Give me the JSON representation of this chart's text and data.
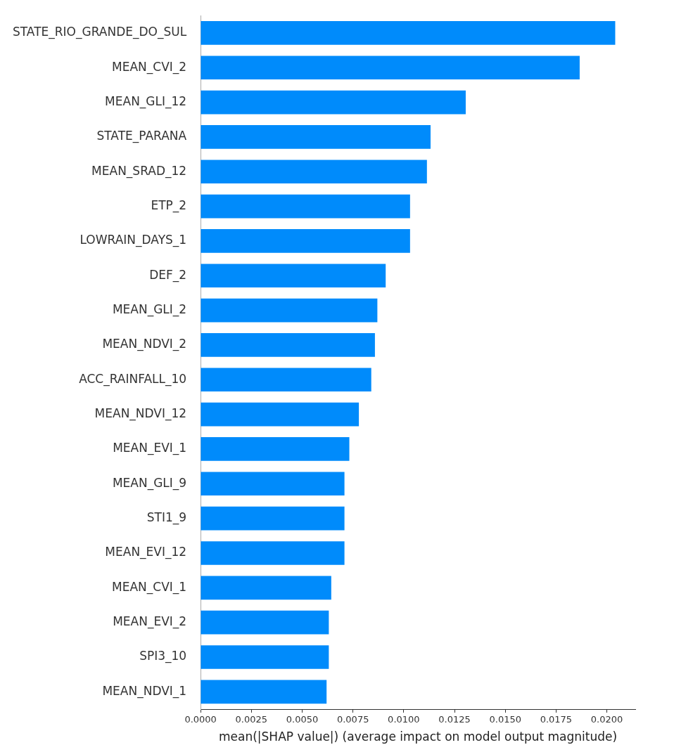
{
  "chart_data": {
    "type": "bar",
    "orientation": "horizontal",
    "xlabel": "mean(|SHAP value|) (average impact on model output magnitude)",
    "categories": [
      "STATE_RIO_GRANDE_DO_SUL",
      "MEAN_CVI_2",
      "MEAN_GLI_12",
      "STATE_PARANA",
      "MEAN_SRAD_12",
      "ETP_2",
      "LOWRAIN_DAYS_1",
      "DEF_2",
      "MEAN_GLI_2",
      "MEAN_NDVI_2",
      "ACC_RAINFALL_10",
      "MEAN_NDVI_12",
      "MEAN_EVI_1",
      "MEAN_GLI_9",
      "STI1_9",
      "MEAN_EVI_12",
      "MEAN_CVI_1",
      "MEAN_EVI_2",
      "SPI3_10",
      "MEAN_NDVI_1"
    ],
    "values": [
      0.0204,
      0.01865,
      0.01304,
      0.01131,
      0.01113,
      0.0103,
      0.0103,
      0.0091,
      0.00869,
      0.00857,
      0.00839,
      0.00778,
      0.00731,
      0.00707,
      0.00707,
      0.00707,
      0.00642,
      0.0063,
      0.0063,
      0.00619
    ],
    "color": "#008bfb",
    "xlim": [
      0,
      0.0214
    ],
    "xticks": [
      {
        "value": 0,
        "label": "0.0000"
      },
      {
        "value": 0.0025,
        "label": "0.0025"
      },
      {
        "value": 0.005,
        "label": "0.0050"
      },
      {
        "value": 0.0075,
        "label": "0.0075"
      },
      {
        "value": 0.01,
        "label": "0.0100"
      },
      {
        "value": 0.0125,
        "label": "0.0125"
      },
      {
        "value": 0.015,
        "label": "0.0150"
      },
      {
        "value": 0.0175,
        "label": "0.0175"
      },
      {
        "value": 0.02,
        "label": "0.0200"
      }
    ]
  }
}
